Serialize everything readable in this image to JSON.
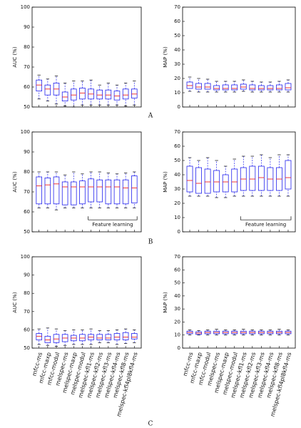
{
  "panels": [
    "A",
    "B",
    "C"
  ],
  "chart_data": [
    {
      "type": "box",
      "ylabel": "AUC (%)",
      "ylim": [
        50,
        100
      ],
      "yticks": [
        50,
        60,
        70,
        80,
        90,
        100
      ],
      "box_color": "#2222ee",
      "median_color": "#ee2222",
      "whislo": [
        54,
        53,
        51.5,
        50.5,
        50,
        51,
        51,
        51,
        51,
        51,
        50.5,
        51
      ],
      "q1": [
        58,
        56,
        56,
        53,
        53.5,
        54,
        54,
        54,
        54,
        53.5,
        54,
        54.5
      ],
      "median": [
        61,
        59,
        59,
        55,
        56,
        57,
        56.5,
        56,
        56,
        55.5,
        56,
        56.5
      ],
      "q3": [
        63.5,
        61,
        62,
        57.5,
        59,
        59.5,
        59,
        58.5,
        58.5,
        58,
        59,
        59
      ],
      "whishi": [
        66,
        64,
        65.5,
        62,
        63,
        63,
        63.5,
        61,
        62,
        61,
        62,
        63
      ]
    },
    {
      "type": "box",
      "ylabel": "MAP (%)",
      "ylim": [
        0,
        70
      ],
      "yticks": [
        0,
        10,
        20,
        30,
        40,
        50,
        60,
        70
      ],
      "box_color": "#2222ee",
      "median_color": "#ee2222",
      "whislo": [
        11,
        10.5,
        10.5,
        10.5,
        10.5,
        10.5,
        11,
        10.5,
        10.5,
        10.5,
        10.5,
        10.5
      ],
      "q1": [
        13,
        12.5,
        12.5,
        12,
        12,
        12,
        12.5,
        12,
        12,
        12,
        12,
        12
      ],
      "median": [
        15,
        14,
        14,
        13,
        13,
        13,
        14,
        13,
        13,
        13,
        13,
        13.5
      ],
      "q3": [
        17.5,
        16.5,
        16.5,
        15,
        15.5,
        15.5,
        16,
        15.5,
        15,
        15,
        15.5,
        16.5
      ],
      "whishi": [
        21,
        20,
        19.5,
        18,
        18,
        18,
        19,
        18,
        17.5,
        17.5,
        18,
        19
      ]
    },
    {
      "type": "box",
      "ylabel": "AUC (%)",
      "ylim": [
        50,
        100
      ],
      "yticks": [
        50,
        60,
        70,
        80,
        90,
        100
      ],
      "box_color": "#2222ee",
      "median_color": "#ee2222",
      "annotation": "Feature learning",
      "whislo": [
        62,
        62,
        61,
        62,
        62,
        62,
        62,
        62,
        62,
        62,
        62,
        62
      ],
      "q1": [
        64,
        64,
        64,
        63.5,
        63.5,
        64,
        65,
        65,
        64,
        64,
        64,
        64.5
      ],
      "median": [
        73,
        73.5,
        74,
        72.5,
        72.5,
        72.5,
        72.5,
        72.5,
        72.5,
        72.5,
        72,
        72
      ],
      "q3": [
        77.5,
        77,
        77.5,
        75,
        75,
        75.5,
        76.5,
        76,
        76,
        76,
        76,
        78
      ],
      "whishi": [
        80,
        80,
        80,
        78.5,
        80,
        79,
        80,
        80,
        79.5,
        79,
        79.5,
        80
      ]
    },
    {
      "type": "box",
      "ylabel": "MAP (%)",
      "ylim": [
        0,
        70
      ],
      "yticks": [
        0,
        10,
        20,
        30,
        40,
        50,
        60,
        70
      ],
      "box_color": "#2222ee",
      "median_color": "#ee2222",
      "annotation": "Feature learning",
      "whislo": [
        25,
        25,
        25,
        24,
        24,
        25,
        25,
        25,
        25,
        25,
        25,
        25
      ],
      "q1": [
        28,
        27,
        27,
        28,
        28,
        28,
        29,
        29,
        29,
        29,
        29,
        30
      ],
      "median": [
        36,
        34,
        35,
        35,
        35,
        35,
        37,
        37,
        38,
        37,
        37,
        38
      ],
      "q3": [
        46,
        45,
        44,
        43,
        40,
        44,
        45,
        46,
        46,
        45,
        45,
        50
      ],
      "whishi": [
        52,
        50,
        52,
        50,
        46,
        51,
        53,
        53,
        54,
        52,
        54,
        54
      ]
    },
    {
      "type": "box",
      "ylabel": "AUC (%)",
      "ylim": [
        50,
        100
      ],
      "yticks": [
        50,
        60,
        70,
        80,
        90,
        100
      ],
      "box_color": "#2222ee",
      "median_color": "#ee2222",
      "categories": [
        "mfcc-ms",
        "mfcc-maxp",
        "mfcc-modul",
        "melspec-ms",
        "melspec-maxp",
        "melspec-modul",
        "melspec-kfl1-ms",
        "melspec-kfl2-ms",
        "melspec-kfl3-ms",
        "melspec-kfl4-ms",
        "melspec-kfl8-ms",
        "melspec-kfl4pl8kfl4-ms"
      ],
      "whislo": [
        52,
        51.5,
        51,
        51.5,
        52,
        52,
        52,
        53,
        53,
        52,
        52.5,
        53
      ],
      "q1": [
        54.5,
        53,
        53,
        53.5,
        54,
        54,
        54.5,
        54.5,
        54.5,
        54.5,
        54.5,
        55
      ],
      "median": [
        56.5,
        54.5,
        55,
        55.5,
        55.5,
        55.5,
        56,
        55.5,
        55.5,
        56,
        56,
        56
      ],
      "q3": [
        58,
        56.5,
        57.5,
        57.5,
        57,
        57.5,
        57.5,
        57.5,
        57.5,
        58,
        58.5,
        58
      ],
      "whishi": [
        60.5,
        61,
        60.5,
        59.5,
        60,
        60,
        60.5,
        59.5,
        59.5,
        60,
        60.5,
        60
      ]
    },
    {
      "type": "box",
      "ylabel": "MAP (%)",
      "ylim": [
        0,
        70
      ],
      "yticks": [
        0,
        10,
        20,
        30,
        40,
        50,
        60,
        70
      ],
      "box_color": "#2222ee",
      "median_color": "#ee2222",
      "categories": [
        "mfcc-ms",
        "mfcc-maxp",
        "mfcc-modul",
        "melspec-ms",
        "melspec-maxp",
        "melspec-modul",
        "melspec-kfl1-ms",
        "melspec-kfl2-ms",
        "melspec-kfl3-ms",
        "melspec-kfl4-ms",
        "melspec-kfl8-ms",
        "melspec-kfl4pl8kfl4-ms"
      ],
      "whislo": [
        10,
        10,
        10,
        10,
        10,
        10,
        10,
        10,
        10,
        10,
        10,
        10
      ],
      "q1": [
        11,
        10.5,
        11,
        11,
        11,
        11,
        11,
        11,
        11,
        11,
        11,
        11
      ],
      "median": [
        12,
        11.5,
        12,
        12,
        12,
        12,
        12,
        12,
        12,
        12,
        12,
        12
      ],
      "q3": [
        13,
        12.5,
        13,
        13,
        13,
        13,
        13,
        13,
        13,
        13,
        13,
        13
      ],
      "whishi": [
        14,
        13.5,
        14,
        14.5,
        14,
        14,
        14.5,
        14,
        14,
        14,
        14.5,
        14
      ]
    }
  ]
}
